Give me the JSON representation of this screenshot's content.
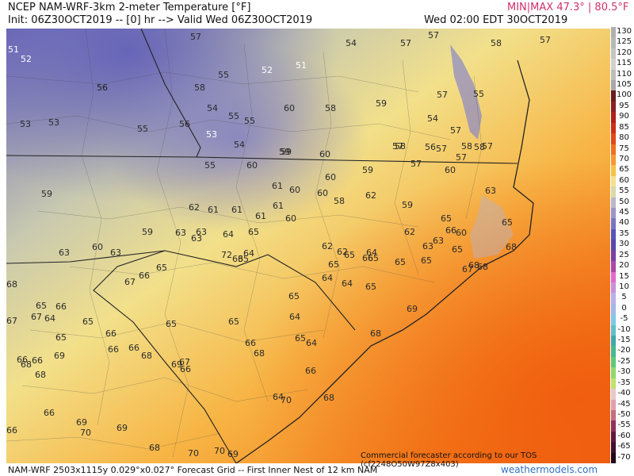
{
  "header": {
    "title": "NCEP NAM-WRF-3km 2-meter Temperature [°F]",
    "init_line": "Init: 06Z30OCT2019 -- [0] hr --> Valid Wed 06Z30OCT2019",
    "minmax_label": "MIN|MAX",
    "min_value": "47.3°",
    "max_value": "80.5°F",
    "valid_local": "Wed 02:00 EDT 30OCT2019"
  },
  "footer": {
    "grid_info": "NAM-WRF 2503x1115y 0.029°x0.027° Forecast Grid -- First Inner Nest of 12 km NAM",
    "source": "weathermodels.com",
    "notice": "Commercial forecaster according to our TOS (cf2248O50W97Z8x403)"
  },
  "colors": {
    "minmax": "#d0306a",
    "source": "#3070c0",
    "cool": "#7a78c4",
    "mild": "#e8e09a",
    "warm": "#f5a030",
    "hot": "#f06a10"
  },
  "scale": [
    "130",
    "125",
    "120",
    "115",
    "110",
    "105",
    "100",
    "95",
    "90",
    "85",
    "80",
    "75",
    "70",
    "65",
    "60",
    "55",
    "50",
    "45",
    "40",
    "35",
    "30",
    "25",
    "20",
    "15",
    "10",
    "5",
    "0",
    "-5",
    "-10",
    "-15",
    "-20",
    "-25",
    "-30",
    "-35",
    "-40",
    "-45",
    "-50",
    "-55",
    "-60",
    "-65",
    "-70"
  ],
  "labels": [
    {
      "t": "51",
      "w": true
    },
    {
      "t": "52",
      "w": true
    },
    {
      "t": "57"
    },
    {
      "t": "54"
    },
    {
      "t": "57"
    },
    {
      "t": "57"
    },
    {
      "t": "57"
    },
    {
      "t": "58"
    },
    {
      "t": "53"
    },
    {
      "t": "56"
    },
    {
      "t": "55"
    },
    {
      "t": "52",
      "w": true
    },
    {
      "t": "51",
      "w": true
    },
    {
      "t": "58"
    },
    {
      "t": "56"
    },
    {
      "t": "55"
    },
    {
      "t": "54"
    },
    {
      "t": "60"
    },
    {
      "t": "58"
    },
    {
      "t": "59"
    },
    {
      "t": "57"
    },
    {
      "t": "55"
    },
    {
      "t": "54"
    },
    {
      "t": "53"
    },
    {
      "t": "55"
    },
    {
      "t": "56"
    },
    {
      "t": "55"
    },
    {
      "t": "53",
      "w": true
    },
    {
      "t": "54"
    },
    {
      "t": "59"
    },
    {
      "t": "60"
    },
    {
      "t": "57"
    },
    {
      "t": "57"
    },
    {
      "t": "57"
    },
    {
      "t": "58"
    },
    {
      "t": "58"
    },
    {
      "t": "56"
    },
    {
      "t": "57"
    },
    {
      "t": "58"
    },
    {
      "t": "57"
    },
    {
      "t": "57"
    },
    {
      "t": "55"
    },
    {
      "t": "60"
    },
    {
      "t": "60"
    },
    {
      "t": "59"
    },
    {
      "t": "59"
    },
    {
      "t": "60"
    },
    {
      "t": "59"
    },
    {
      "t": "61"
    },
    {
      "t": "60"
    },
    {
      "t": "60"
    },
    {
      "t": "58"
    },
    {
      "t": "62"
    },
    {
      "t": "62"
    },
    {
      "t": "61"
    },
    {
      "t": "61"
    },
    {
      "t": "61"
    },
    {
      "t": "61"
    },
    {
      "t": "60"
    },
    {
      "t": "59"
    },
    {
      "t": "63"
    },
    {
      "t": "63"
    },
    {
      "t": "65"
    },
    {
      "t": "64"
    },
    {
      "t": "59"
    },
    {
      "t": "63"
    },
    {
      "t": "62"
    },
    {
      "t": "63"
    },
    {
      "t": "60"
    },
    {
      "t": "63"
    },
    {
      "t": "65"
    },
    {
      "t": "65"
    },
    {
      "t": "65"
    },
    {
      "t": "63"
    },
    {
      "t": "60"
    },
    {
      "t": "63"
    },
    {
      "t": "63"
    },
    {
      "t": "64"
    },
    {
      "t": "62"
    },
    {
      "t": "62"
    },
    {
      "t": "65"
    },
    {
      "t": "66"
    },
    {
      "t": "64"
    },
    {
      "t": "65"
    },
    {
      "t": "65"
    },
    {
      "t": "66"
    },
    {
      "t": "67"
    },
    {
      "t": "68"
    },
    {
      "t": "68"
    },
    {
      "t": "68"
    },
    {
      "t": "68"
    },
    {
      "t": "67"
    },
    {
      "t": "66"
    },
    {
      "t": "65"
    },
    {
      "t": "65"
    },
    {
      "t": "64"
    },
    {
      "t": "64"
    },
    {
      "t": "65"
    },
    {
      "t": "65"
    },
    {
      "t": "65"
    },
    {
      "t": "65"
    },
    {
      "t": "66"
    },
    {
      "t": "69"
    },
    {
      "t": "67"
    },
    {
      "t": "64"
    },
    {
      "t": "65"
    },
    {
      "t": "66"
    },
    {
      "t": "68"
    },
    {
      "t": "67"
    },
    {
      "t": "65"
    },
    {
      "t": "66"
    },
    {
      "t": "66"
    },
    {
      "t": "65"
    },
    {
      "t": "65"
    },
    {
      "t": "64"
    },
    {
      "t": "65"
    },
    {
      "t": "64"
    },
    {
      "t": "66"
    },
    {
      "t": "68"
    },
    {
      "t": "66"
    },
    {
      "t": "68"
    },
    {
      "t": "68"
    },
    {
      "t": "69"
    },
    {
      "t": "67"
    },
    {
      "t": "66"
    },
    {
      "t": "66"
    },
    {
      "t": "66"
    },
    {
      "t": "68"
    },
    {
      "t": "69"
    },
    {
      "t": "66"
    },
    {
      "t": "66"
    },
    {
      "t": "69"
    },
    {
      "t": "70"
    },
    {
      "t": "69"
    },
    {
      "t": "70"
    },
    {
      "t": "68"
    },
    {
      "t": "68"
    },
    {
      "t": "70"
    },
    {
      "t": "70"
    },
    {
      "t": "69"
    },
    {
      "t": "72"
    },
    {
      "t": "63"
    },
    {
      "t": "65"
    },
    {
      "t": "64"
    },
    {
      "t": "68"
    }
  ]
}
